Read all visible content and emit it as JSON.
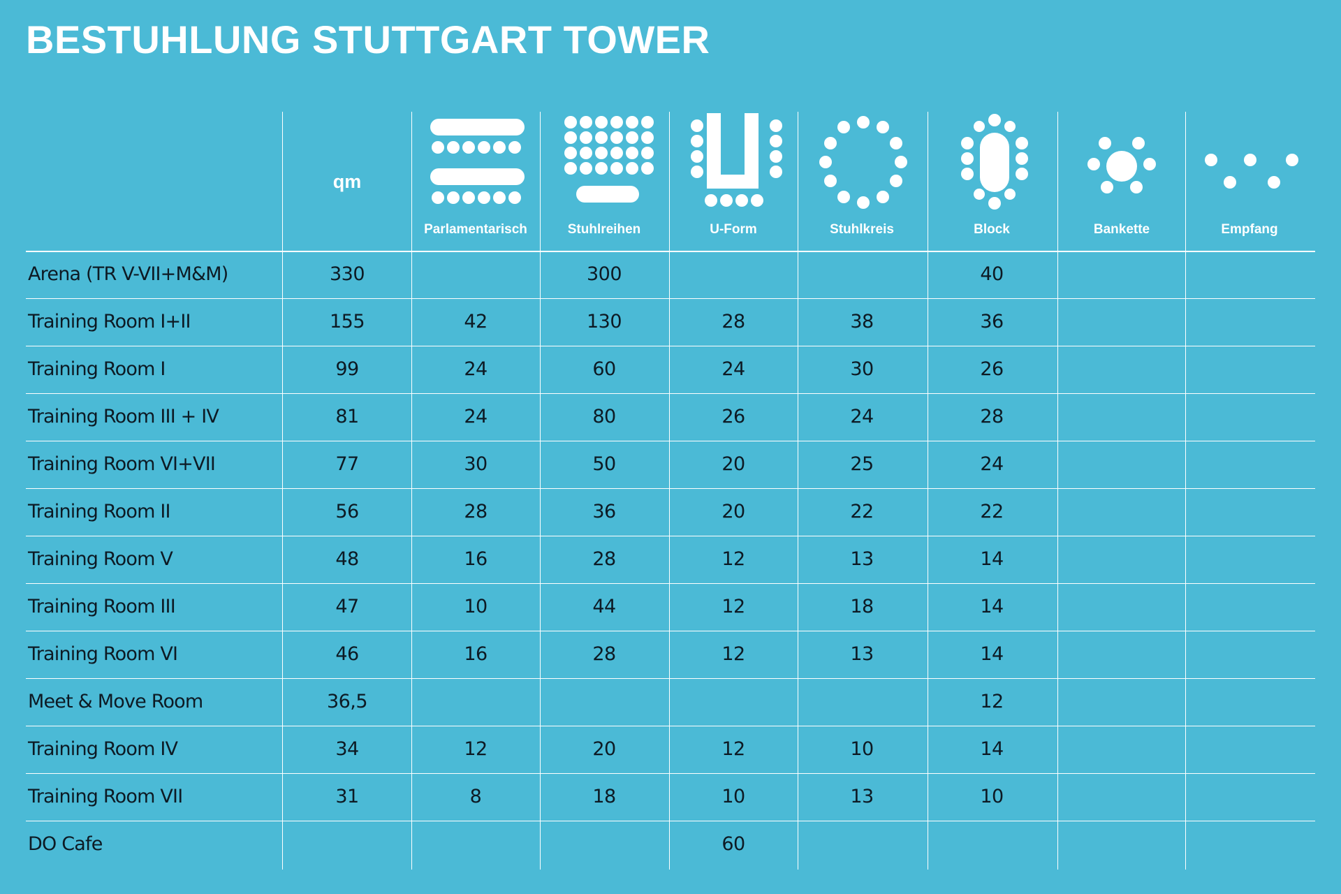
{
  "title": "BESTUHLUNG STUTTGART TOWER",
  "colors": {
    "background": "#4bbad6",
    "text": "#0d1a24",
    "lines": "#ffffff"
  },
  "columns": {
    "qm": "qm",
    "parlamentarisch": {
      "label": "Parlamentarisch",
      "icon": "parlamentarisch-icon"
    },
    "stuhlreihen": {
      "label": "Stuhlreihen",
      "icon": "stuhlreihen-icon"
    },
    "u_form": {
      "label": "U-Form",
      "icon": "u-form-icon"
    },
    "stuhlkreis": {
      "label": "Stuhlkreis",
      "icon": "stuhlkreis-icon"
    },
    "block": {
      "label": "Block",
      "icon": "block-icon"
    },
    "bankette": {
      "label": "Bankette",
      "icon": "bankette-icon"
    },
    "empfang": {
      "label": "Empfang",
      "icon": "empfang-icon"
    }
  },
  "rows": [
    {
      "name": "Arena (TR V-VII+M&M)",
      "qm": "330",
      "parlamentarisch": "",
      "stuhlreihen": "300",
      "u_form": "",
      "stuhlkreis": "",
      "block": "40",
      "bankette": "",
      "empfang": ""
    },
    {
      "name": "Training Room I+II",
      "qm": "155",
      "parlamentarisch": "42",
      "stuhlreihen": "130",
      "u_form": "28",
      "stuhlkreis": "38",
      "block": "36",
      "bankette": "",
      "empfang": ""
    },
    {
      "name": "Training Room I",
      "qm": "99",
      "parlamentarisch": "24",
      "stuhlreihen": "60",
      "u_form": "24",
      "stuhlkreis": "30",
      "block": "26",
      "bankette": "",
      "empfang": ""
    },
    {
      "name": "Training Room III + IV",
      "qm": "81",
      "parlamentarisch": "24",
      "stuhlreihen": "80",
      "u_form": "26",
      "stuhlkreis": "24",
      "block": "28",
      "bankette": "",
      "empfang": ""
    },
    {
      "name": "Training Room VI+VII",
      "qm": "77",
      "parlamentarisch": "30",
      "stuhlreihen": "50",
      "u_form": "20",
      "stuhlkreis": "25",
      "block": "24",
      "bankette": "",
      "empfang": ""
    },
    {
      "name": "Training Room II",
      "qm": "56",
      "parlamentarisch": "28",
      "stuhlreihen": "36",
      "u_form": "20",
      "stuhlkreis": "22",
      "block": "22",
      "bankette": "",
      "empfang": ""
    },
    {
      "name": "Training Room V",
      "qm": "48",
      "parlamentarisch": "16",
      "stuhlreihen": "28",
      "u_form": "12",
      "stuhlkreis": "13",
      "block": "14",
      "bankette": "",
      "empfang": ""
    },
    {
      "name": "Training Room III",
      "qm": "47",
      "parlamentarisch": "10",
      "stuhlreihen": "44",
      "u_form": "12",
      "stuhlkreis": "18",
      "block": "14",
      "bankette": "",
      "empfang": ""
    },
    {
      "name": "Training Room VI",
      "qm": "46",
      "parlamentarisch": "16",
      "stuhlreihen": "28",
      "u_form": "12",
      "stuhlkreis": "13",
      "block": "14",
      "bankette": "",
      "empfang": ""
    },
    {
      "name": "Meet & Move Room",
      "qm": "36,5",
      "parlamentarisch": "",
      "stuhlreihen": "",
      "u_form": "",
      "stuhlkreis": "",
      "block": "12",
      "bankette": "",
      "empfang": ""
    },
    {
      "name": "Training Room IV",
      "qm": "34",
      "parlamentarisch": "12",
      "stuhlreihen": "20",
      "u_form": "12",
      "stuhlkreis": "10",
      "block": "14",
      "bankette": "",
      "empfang": ""
    },
    {
      "name": "Training Room VII",
      "qm": "31",
      "parlamentarisch": "8",
      "stuhlreihen": "18",
      "u_form": "10",
      "stuhlkreis": "13",
      "block": "10",
      "bankette": "",
      "empfang": ""
    },
    {
      "name": "DO Cafe",
      "qm": "",
      "parlamentarisch": "",
      "stuhlreihen": "",
      "u_form": "60",
      "stuhlkreis": "",
      "block": "",
      "bankette": "",
      "empfang": ""
    }
  ]
}
